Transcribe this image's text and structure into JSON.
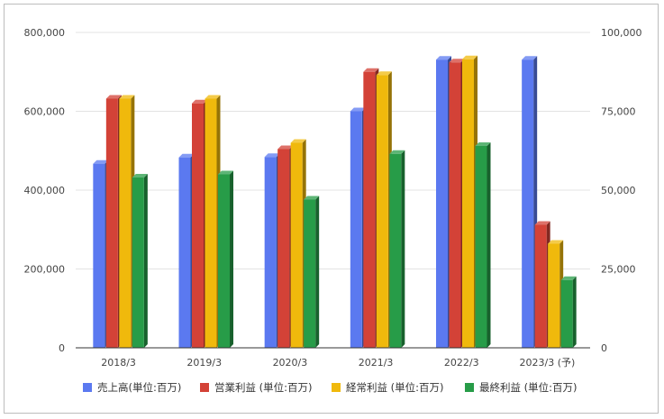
{
  "chart_data": {
    "type": "bar",
    "categories": [
      "2018/3",
      "2019/3",
      "2020/3",
      "2021/3",
      "2022/3",
      "2023/3 (予)"
    ],
    "series": [
      {
        "name": "売上高(単位:百万)",
        "axis": "left",
        "color": "#5b79f0",
        "values": [
          467000,
          483000,
          484000,
          600000,
          731000,
          731000
        ]
      },
      {
        "name": "営業利益 (単位:百万)",
        "axis": "right",
        "color": "#d34237",
        "values": [
          79000,
          77500,
          63000,
          87500,
          90500,
          39000
        ]
      },
      {
        "name": "経常利益 (単位:百万)",
        "axis": "right",
        "color": "#f0b90c",
        "values": [
          79000,
          79000,
          65000,
          86500,
          91500,
          33000
        ]
      },
      {
        "name": "最終利益 (単位:百万)",
        "axis": "right",
        "color": "#279c48",
        "values": [
          54000,
          55000,
          47000,
          61500,
          64000,
          21500
        ]
      }
    ],
    "y_left": {
      "min": 0,
      "max": 800000,
      "ticks": [
        "0",
        "200,000",
        "400,000",
        "600,000",
        "800,000"
      ]
    },
    "y_right": {
      "min": 0,
      "max": 100000,
      "ticks": [
        "0",
        "25,000",
        "50,000",
        "75,000",
        "100,000"
      ]
    },
    "grid": true,
    "legend_position": "bottom"
  }
}
